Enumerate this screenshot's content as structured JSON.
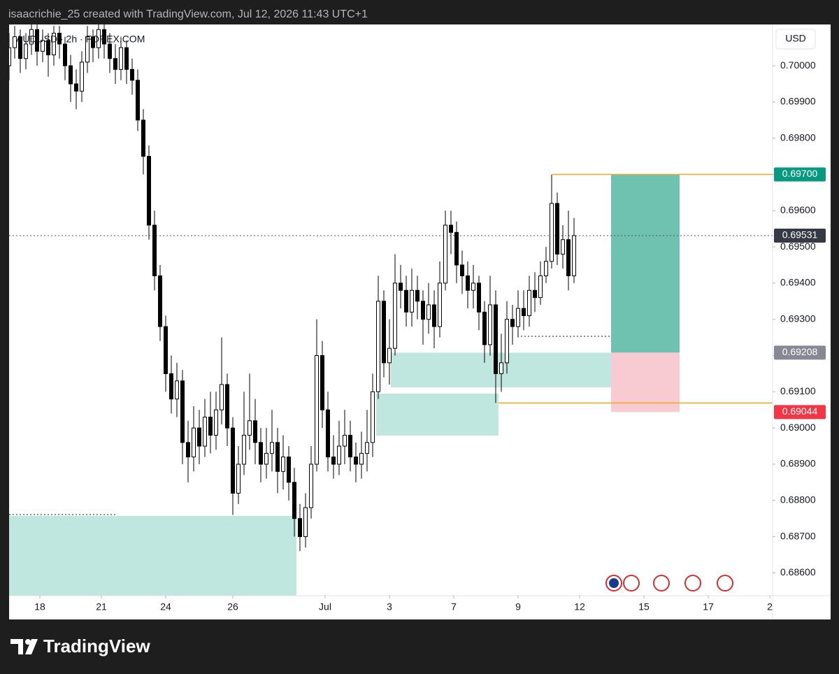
{
  "header": "isaacrichie_25 created with TradingView.com, Jul 12, 2026 11:43 UTC+1",
  "brand": "TradingView",
  "chart_data": {
    "type": "candlestick",
    "symbol": "AUDUSD · 2h · FOREX.COM",
    "currency": "USD",
    "up_color": "#ffffff",
    "down_color": "#000000",
    "wick_color": "#000000",
    "xlim": [
      0,
      273
    ],
    "ylim": [
      0.68537,
      0.70114
    ],
    "xticks": [
      {
        "value": 11,
        "label": "18"
      },
      {
        "value": 33,
        "label": "21"
      },
      {
        "value": 56,
        "label": "24"
      },
      {
        "value": 80,
        "label": "26"
      },
      {
        "value": 113,
        "label": "Jul"
      },
      {
        "value": 136,
        "label": "3"
      },
      {
        "value": 159,
        "label": "7"
      },
      {
        "value": 182,
        "label": "9"
      },
      {
        "value": 204,
        "label": "12"
      },
      {
        "value": 227,
        "label": "15"
      },
      {
        "value": 250,
        "label": "17"
      },
      {
        "value": 272,
        "label": "2"
      }
    ],
    "yticks": [
      {
        "value": 0.686,
        "label": "0.68600"
      },
      {
        "value": 0.687,
        "label": "0.68700"
      },
      {
        "value": 0.688,
        "label": "0.68800"
      },
      {
        "value": 0.689,
        "label": "0.68900"
      },
      {
        "value": 0.69,
        "label": "0.69000"
      },
      {
        "value": 0.691,
        "label": "0.69100"
      },
      {
        "value": 0.692,
        "label": "0.69200"
      },
      {
        "value": 0.693,
        "label": "0.69300"
      },
      {
        "value": 0.694,
        "label": "0.69400"
      },
      {
        "value": 0.695,
        "label": "0.69500"
      },
      {
        "value": 0.696,
        "label": "0.69600"
      },
      {
        "value": 0.697,
        "label": "0.69700"
      },
      {
        "value": 0.698,
        "label": "0.69800"
      },
      {
        "value": 0.699,
        "label": "0.69900"
      },
      {
        "value": 0.7,
        "label": "0.70000"
      }
    ],
    "x": [
      0,
      2,
      4,
      6,
      8,
      10,
      12,
      14,
      16,
      18,
      20,
      22,
      24,
      26,
      28,
      30,
      32,
      34,
      36,
      38,
      40,
      42,
      44,
      46,
      48,
      50,
      52,
      54,
      56,
      58,
      60,
      62,
      64,
      66,
      68,
      70,
      72,
      74,
      76,
      78,
      80,
      82,
      84,
      86,
      88,
      90,
      92,
      94,
      96,
      98,
      100,
      102,
      104,
      106,
      108,
      110,
      112,
      114,
      116,
      118,
      120,
      122,
      124,
      126,
      128,
      130,
      132,
      134,
      136,
      138,
      140,
      142,
      144,
      146,
      148,
      150,
      152,
      154,
      156,
      158,
      160,
      162,
      164,
      166,
      168,
      170,
      172,
      174,
      176,
      178,
      180,
      182,
      184,
      186,
      188,
      190,
      192,
      194,
      196,
      198,
      200,
      202
    ],
    "open": [
      0.7,
      0.7005,
      0.7008,
      0.7002,
      0.7006,
      0.701,
      0.7004,
      0.7007,
      0.7003,
      0.7009,
      0.7006,
      0.7,
      0.6995,
      0.6993,
      0.7001,
      0.7008,
      0.7005,
      0.701,
      0.7006,
      0.7002,
      0.6999,
      0.7005,
      0.6999,
      0.6996,
      0.6985,
      0.6975,
      0.6956,
      0.6942,
      0.6928,
      0.6915,
      0.6908,
      0.6913,
      0.6896,
      0.6892,
      0.69,
      0.6895,
      0.6903,
      0.6898,
      0.6905,
      0.6912,
      0.69,
      0.6882,
      0.689,
      0.6898,
      0.6902,
      0.6896,
      0.689,
      0.6893,
      0.6896,
      0.6888,
      0.6892,
      0.6885,
      0.6875,
      0.687,
      0.6878,
      0.689,
      0.692,
      0.6905,
      0.6892,
      0.689,
      0.6895,
      0.6898,
      0.6892,
      0.689,
      0.6893,
      0.6896,
      0.691,
      0.6935,
      0.6918,
      0.6922,
      0.694,
      0.6938,
      0.6932,
      0.6938,
      0.6935,
      0.693,
      0.6934,
      0.6928,
      0.694,
      0.6956,
      0.6954,
      0.6945,
      0.6942,
      0.6938,
      0.694,
      0.6932,
      0.6923,
      0.6934,
      0.6915,
      0.6918,
      0.693,
      0.6928,
      0.6933,
      0.6931,
      0.6938,
      0.6936,
      0.6942,
      0.6946,
      0.6962,
      0.6948,
      0.6952,
      0.6942
    ],
    "high": [
      0.7009,
      0.7011,
      0.701,
      0.7009,
      0.7012,
      0.7012,
      0.701,
      0.7009,
      0.7011,
      0.7011,
      0.7008,
      0.7003,
      0.6999,
      0.7004,
      0.7011,
      0.701,
      0.7012,
      0.7012,
      0.7009,
      0.7006,
      0.7008,
      0.7007,
      0.7002,
      0.6999,
      0.6988,
      0.6978,
      0.696,
      0.6945,
      0.6931,
      0.692,
      0.6918,
      0.6916,
      0.6902,
      0.6906,
      0.6905,
      0.6908,
      0.691,
      0.691,
      0.6925,
      0.6915,
      0.6903,
      0.6895,
      0.691,
      0.6915,
      0.6908,
      0.69,
      0.69,
      0.6905,
      0.69,
      0.6898,
      0.6895,
      0.6889,
      0.6879,
      0.6882,
      0.6895,
      0.693,
      0.6924,
      0.691,
      0.6898,
      0.6902,
      0.6905,
      0.6902,
      0.6896,
      0.6899,
      0.6905,
      0.6915,
      0.6942,
      0.6938,
      0.693,
      0.6948,
      0.6945,
      0.6942,
      0.6944,
      0.6942,
      0.6938,
      0.694,
      0.6938,
      0.6946,
      0.696,
      0.696,
      0.6957,
      0.6949,
      0.6946,
      0.6945,
      0.6942,
      0.6935,
      0.6942,
      0.6938,
      0.6926,
      0.6935,
      0.6934,
      0.6938,
      0.6938,
      0.6942,
      0.6943,
      0.6946,
      0.695,
      0.697,
      0.6965,
      0.6956,
      0.696,
      0.6958
    ],
    "low": [
      0.6996,
      0.7002,
      0.6998,
      0.6999,
      0.7003,
      0.7,
      0.7001,
      0.6997,
      0.7,
      0.7002,
      0.6996,
      0.699,
      0.6988,
      0.699,
      0.6998,
      0.7001,
      0.7002,
      0.7002,
      0.6998,
      0.6995,
      0.6996,
      0.6995,
      0.6992,
      0.6982,
      0.697,
      0.6952,
      0.6938,
      0.6924,
      0.691,
      0.6904,
      0.6903,
      0.689,
      0.6885,
      0.6888,
      0.689,
      0.6892,
      0.6893,
      0.6894,
      0.6901,
      0.6895,
      0.6876,
      0.6879,
      0.6887,
      0.6894,
      0.689,
      0.6885,
      0.6886,
      0.6888,
      0.6882,
      0.6883,
      0.688,
      0.687,
      0.6866,
      0.6867,
      0.6875,
      0.6888,
      0.69,
      0.6888,
      0.6886,
      0.6887,
      0.689,
      0.6888,
      0.6885,
      0.6886,
      0.6888,
      0.6892,
      0.6908,
      0.6914,
      0.6912,
      0.692,
      0.6933,
      0.6928,
      0.6928,
      0.693,
      0.6923,
      0.6926,
      0.6922,
      0.6925,
      0.6938,
      0.6948,
      0.694,
      0.6937,
      0.6933,
      0.6933,
      0.6927,
      0.6918,
      0.692,
      0.69069,
      0.691,
      0.6915,
      0.6923,
      0.6925,
      0.6927,
      0.6928,
      0.6932,
      0.6934,
      0.694,
      0.6944,
      0.6945,
      0.6944,
      0.6938,
      0.694
    ],
    "close": [
      0.7005,
      0.7008,
      0.7002,
      0.7006,
      0.701,
      0.7004,
      0.7007,
      0.7003,
      0.7009,
      0.7006,
      0.7,
      0.6995,
      0.6993,
      0.7001,
      0.7008,
      0.7005,
      0.701,
      0.7006,
      0.7002,
      0.6999,
      0.7005,
      0.6999,
      0.6996,
      0.6985,
      0.6975,
      0.6956,
      0.6942,
      0.6928,
      0.6915,
      0.6908,
      0.6913,
      0.6896,
      0.6892,
      0.69,
      0.6895,
      0.6903,
      0.6898,
      0.6905,
      0.6912,
      0.69,
      0.6882,
      0.689,
      0.6898,
      0.6902,
      0.6896,
      0.689,
      0.6893,
      0.6896,
      0.6888,
      0.6892,
      0.6885,
      0.6875,
      0.687,
      0.6878,
      0.689,
      0.692,
      0.6905,
      0.6892,
      0.689,
      0.6895,
      0.6898,
      0.6892,
      0.689,
      0.6893,
      0.6896,
      0.691,
      0.6935,
      0.6918,
      0.6922,
      0.694,
      0.6938,
      0.6932,
      0.6938,
      0.6935,
      0.693,
      0.6934,
      0.6928,
      0.694,
      0.6956,
      0.6954,
      0.6945,
      0.6942,
      0.6938,
      0.694,
      0.6932,
      0.6923,
      0.6934,
      0.6915,
      0.6918,
      0.693,
      0.6928,
      0.6933,
      0.6931,
      0.6938,
      0.6936,
      0.6942,
      0.6946,
      0.6962,
      0.6948,
      0.6952,
      0.6942,
      0.69531
    ],
    "zones": [
      {
        "x": [
          0,
          102.75
        ],
        "y": [
          0.68757,
          0.68537
        ],
        "color": "#bfe6df"
      },
      {
        "x": [
          136.5,
          215.5
        ],
        "y": [
          0.69208,
          0.69112
        ],
        "color": "#bfe6df"
      },
      {
        "x": [
          131.25,
          175
        ],
        "y": [
          0.69095,
          0.68979
        ],
        "color": "#bfe6df"
      }
    ],
    "position": {
      "x": [
        215.25,
        239.75
      ],
      "target": 0.697,
      "entry": 0.69208,
      "stop": 0.69044,
      "profit_color": "#6fc2b0",
      "loss_color": "#f8cbd2"
    },
    "levels": [
      {
        "value": 0.697,
        "x": [
          194.25,
          273
        ],
        "color": "#f5a623",
        "style": "solid"
      },
      {
        "value": 0.69069,
        "x": [
          175,
          273
        ],
        "color": "#f5a623",
        "style": "solid"
      },
      {
        "value": 0.68761,
        "x": [
          0,
          38.75
        ],
        "color": "#131722",
        "style": "dotted"
      },
      {
        "value": 0.69253,
        "x": [
          183,
          215.5
        ],
        "color": "#131722",
        "style": "dotted"
      },
      {
        "value": 0.69531,
        "x": [
          0,
          273
        ],
        "color": "#555555",
        "style": "dotted"
      }
    ],
    "price_tags": [
      {
        "value": 0.697,
        "label": "0.69700",
        "color": "#089981"
      },
      {
        "value": 0.69531,
        "label": "0.69531",
        "color": "#363a45"
      },
      {
        "value": 0.69208,
        "label": "0.69208",
        "color": "#868993"
      },
      {
        "value": 0.69044,
        "label": "0.69044",
        "color": "#f23645"
      }
    ]
  }
}
